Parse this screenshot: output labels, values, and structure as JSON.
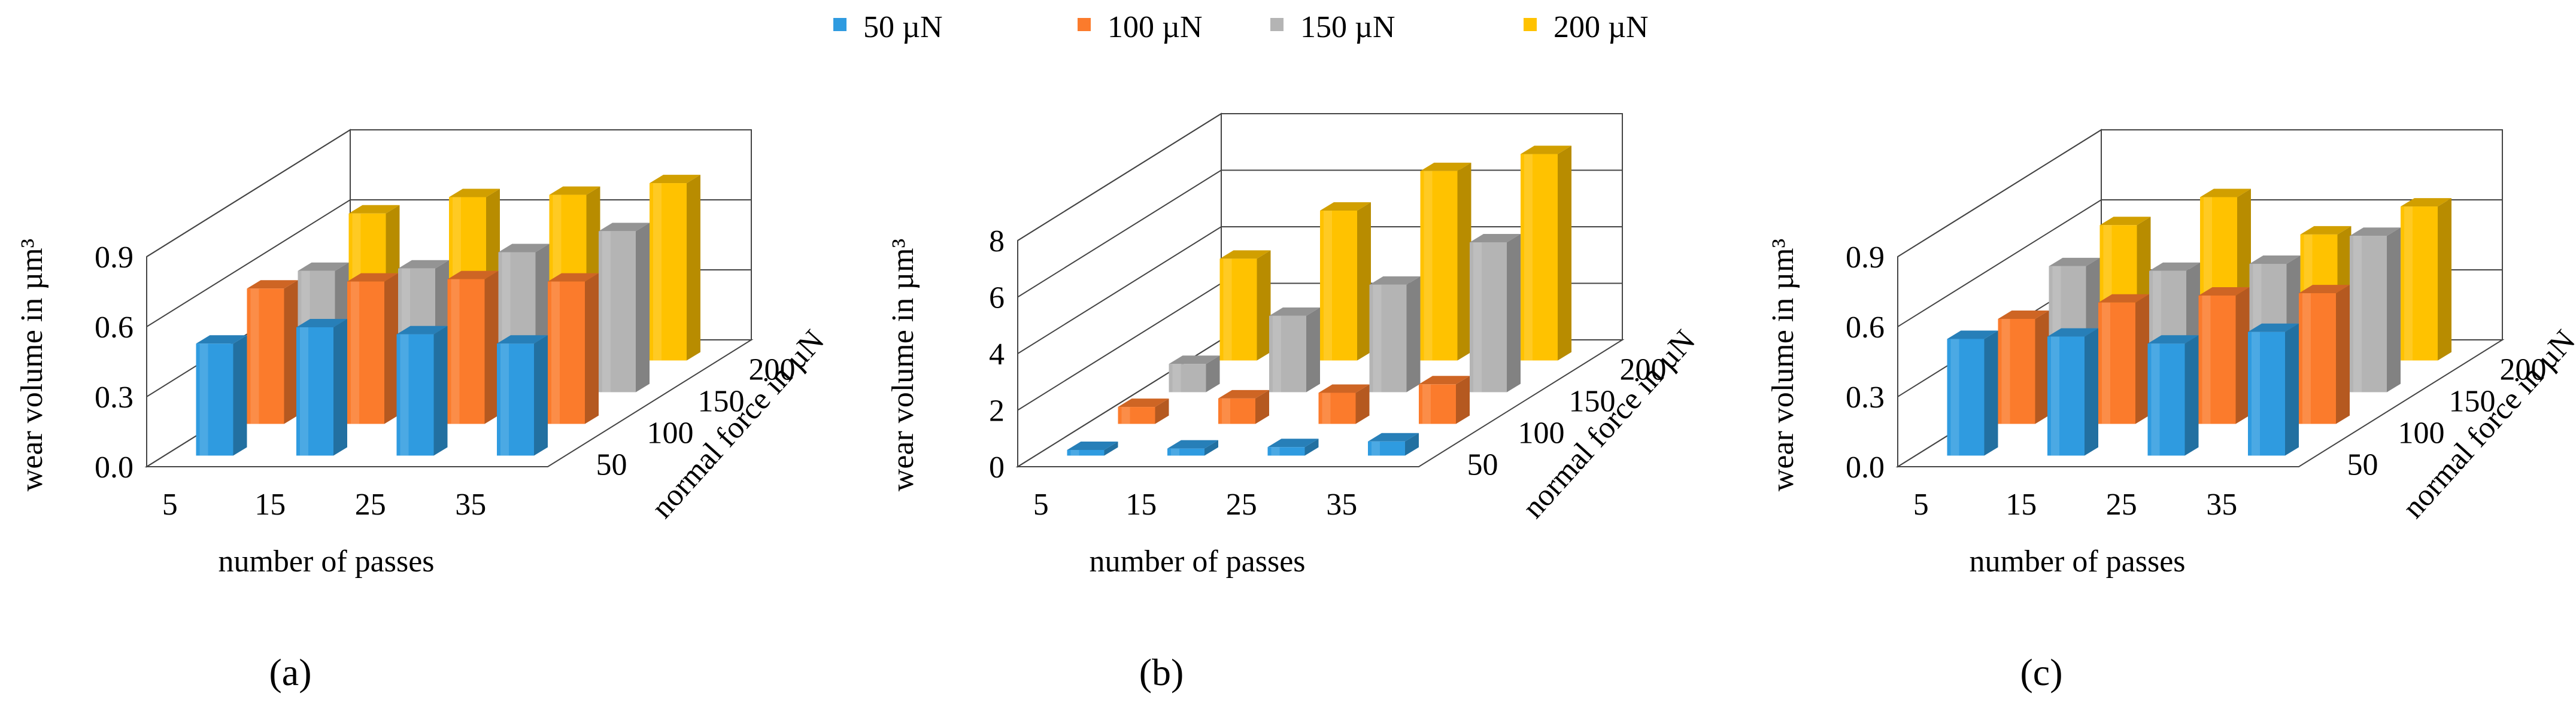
{
  "legend": {
    "entries": [
      {
        "label": "50 µN",
        "color": "#2f9be0"
      },
      {
        "label": "100 µN",
        "color": "#fb7b2c"
      },
      {
        "label": "150 µN",
        "color": "#b4b4b4"
      },
      {
        "label": "200 µN",
        "color": "#ffc200"
      }
    ]
  },
  "chart_data": [
    {
      "type": "bar",
      "panel_label": "(a)",
      "title": "",
      "xlabel": "number of passes",
      "ylabel": "wear volume in µm³",
      "zlabel": "normal force in µN",
      "categories": [
        "5",
        "15",
        "25",
        "35"
      ],
      "depth_categories": [
        "50",
        "100",
        "150",
        "200"
      ],
      "y_ticks": [
        "0.0",
        "0.3",
        "0.6",
        "0.9"
      ],
      "ylim": [
        0,
        0.9
      ],
      "series": [
        {
          "name": "50 µN",
          "values": [
            0.48,
            0.55,
            0.52,
            0.48
          ]
        },
        {
          "name": "100 µN",
          "values": [
            0.58,
            0.61,
            0.62,
            0.61
          ]
        },
        {
          "name": "150 µN",
          "values": [
            0.52,
            0.53,
            0.6,
            0.69
          ]
        },
        {
          "name": "200 µN",
          "values": [
            0.63,
            0.7,
            0.71,
            0.76
          ]
        }
      ]
    },
    {
      "type": "bar",
      "panel_label": "(b)",
      "title": "",
      "xlabel": "number of passes",
      "ylabel": "wear volume in µm³",
      "zlabel": "normal force in µN",
      "categories": [
        "5",
        "15",
        "25",
        "35"
      ],
      "depth_categories": [
        "50",
        "100",
        "150",
        "200"
      ],
      "y_ticks": [
        "0",
        "2",
        "4",
        "6",
        "8"
      ],
      "ylim": [
        0,
        8
      ],
      "series": [
        {
          "name": "50 µN",
          "values": [
            0.2,
            0.25,
            0.3,
            0.5
          ]
        },
        {
          "name": "100 µN",
          "values": [
            0.6,
            0.9,
            1.1,
            1.4
          ]
        },
        {
          "name": "150 µN",
          "values": [
            1.0,
            2.7,
            3.8,
            5.3
          ]
        },
        {
          "name": "200 µN",
          "values": [
            3.6,
            5.3,
            6.7,
            7.3
          ]
        }
      ]
    },
    {
      "type": "bar",
      "panel_label": "(c)",
      "title": "",
      "xlabel": "number of passes",
      "ylabel": "wear volume in µm³",
      "zlabel": "normal force in µN",
      "categories": [
        "5",
        "15",
        "25",
        "35"
      ],
      "depth_categories": [
        "50",
        "100",
        "150",
        "200"
      ],
      "y_ticks": [
        "0.0",
        "0.3",
        "0.6",
        "0.9"
      ],
      "ylim": [
        0,
        0.9
      ],
      "series": [
        {
          "name": "50 µN",
          "values": [
            0.5,
            0.51,
            0.48,
            0.53
          ]
        },
        {
          "name": "100 µN",
          "values": [
            0.45,
            0.52,
            0.55,
            0.56
          ]
        },
        {
          "name": "150 µN",
          "values": [
            0.54,
            0.52,
            0.55,
            0.67
          ]
        },
        {
          "name": "200 µN",
          "values": [
            0.58,
            0.7,
            0.54,
            0.66
          ]
        }
      ]
    }
  ]
}
